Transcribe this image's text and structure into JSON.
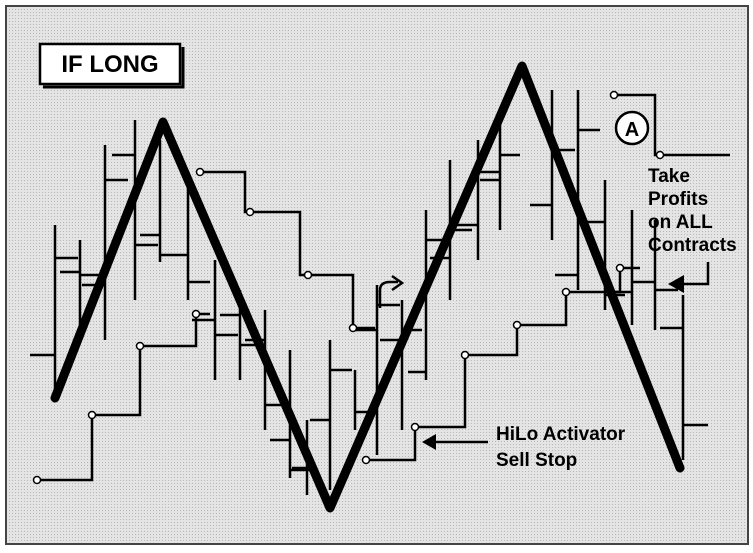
{
  "label": "IF LONG",
  "marker": "A",
  "annotations": [
    {
      "lines": [
        "Take",
        "Profits",
        "on ALL",
        "Contracts"
      ]
    },
    {
      "lines": [
        "HiLo Activator",
        "Sell Stop"
      ]
    }
  ]
}
